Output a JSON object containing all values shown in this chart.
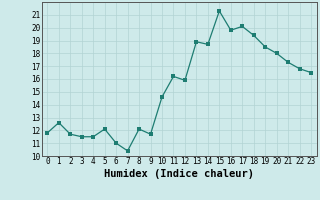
{
  "x": [
    0,
    1,
    2,
    3,
    4,
    5,
    6,
    7,
    8,
    9,
    10,
    11,
    12,
    13,
    14,
    15,
    16,
    17,
    18,
    19,
    20,
    21,
    22,
    23
  ],
  "y": [
    11.8,
    12.6,
    11.7,
    11.5,
    11.5,
    12.1,
    11.0,
    10.4,
    12.1,
    11.7,
    14.6,
    16.2,
    15.9,
    18.9,
    18.7,
    21.3,
    19.8,
    20.1,
    19.4,
    18.5,
    18.0,
    17.3,
    16.8,
    16.5
  ],
  "xlabel": "Humidex (Indice chaleur)",
  "xlim": [
    -0.5,
    23.5
  ],
  "ylim": [
    10,
    22
  ],
  "yticks": [
    10,
    11,
    12,
    13,
    14,
    15,
    16,
    17,
    18,
    19,
    20,
    21
  ],
  "xticks": [
    0,
    1,
    2,
    3,
    4,
    5,
    6,
    7,
    8,
    9,
    10,
    11,
    12,
    13,
    14,
    15,
    16,
    17,
    18,
    19,
    20,
    21,
    22,
    23
  ],
  "line_color": "#1e7d72",
  "marker_color": "#1e7d72",
  "bg_color": "#ceeaea",
  "grid_color": "#b2d4d4",
  "tick_fontsize": 5.5,
  "xlabel_fontsize": 7.5
}
